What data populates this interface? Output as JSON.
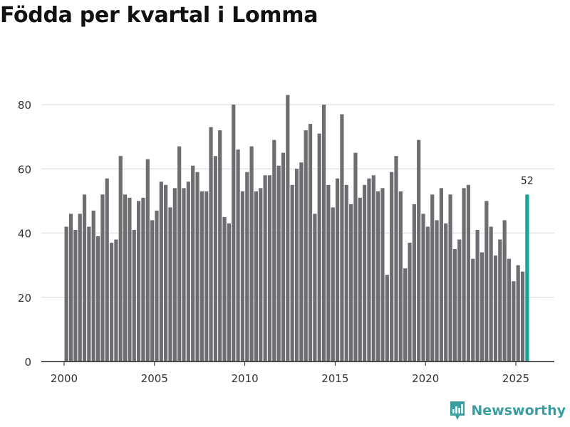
{
  "title": "Födda per kvartal i Lomma",
  "brand": {
    "name": "Newsworthy",
    "icon": "newsworthy-logo-icon",
    "color": "#3a9ea0"
  },
  "colors": {
    "bar": "#6d6d72",
    "highlight": "#17a59a",
    "grid": "#d9d9d9",
    "axis": "#222222",
    "text": "#333333"
  },
  "chart_data": {
    "type": "bar",
    "title": "Födda per kvartal i Lomma",
    "xlabel": "",
    "ylabel": "",
    "ylim": [
      0,
      90
    ],
    "yticks": [
      0,
      20,
      40,
      60,
      80
    ],
    "xticks": [
      "2000",
      "2005",
      "2010",
      "2015",
      "2020",
      "2025"
    ],
    "start_year": 2000,
    "grid": true,
    "highlight_last": true,
    "highlight_label": "52",
    "values": [
      42,
      46,
      41,
      46,
      52,
      42,
      47,
      39,
      52,
      57,
      37,
      38,
      64,
      52,
      51,
      41,
      50,
      51,
      63,
      44,
      47,
      56,
      55,
      48,
      54,
      67,
      54,
      56,
      61,
      59,
      53,
      53,
      73,
      64,
      72,
      45,
      43,
      80,
      66,
      53,
      59,
      67,
      53,
      54,
      58,
      58,
      69,
      61,
      65,
      83,
      55,
      60,
      62,
      72,
      74,
      46,
      71,
      80,
      55,
      48,
      57,
      77,
      55,
      49,
      65,
      51,
      55,
      57,
      58,
      53,
      54,
      27,
      59,
      64,
      53,
      29,
      37,
      49,
      69,
      46,
      42,
      52,
      44,
      54,
      43,
      52,
      35,
      38,
      54,
      55,
      32,
      41,
      34,
      50,
      42,
      33,
      38,
      44,
      32,
      25,
      30,
      28,
      52
    ]
  }
}
